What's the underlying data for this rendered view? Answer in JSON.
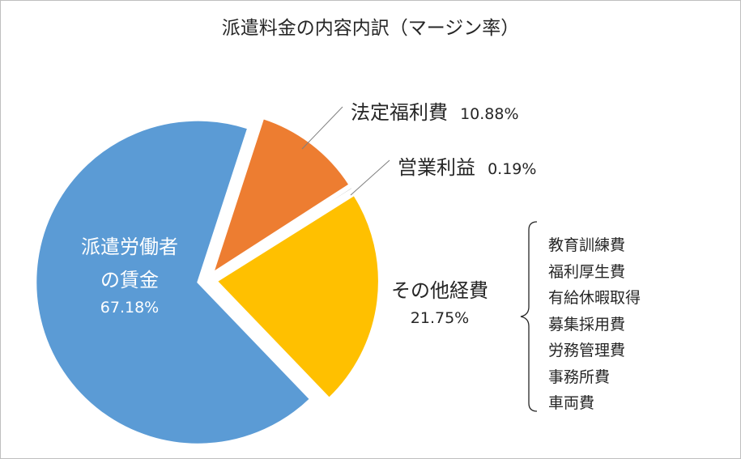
{
  "chart_data": {
    "type": "pie",
    "title": "派遣料金の内容内訳（マージン率）",
    "slices": [
      {
        "name": "派遣労働者の賃金",
        "name_lines": [
          "派遣労働者",
          "の賃金"
        ],
        "value": 67.18,
        "label": "67.18%",
        "color": "#5b9bd5"
      },
      {
        "name": "法定福利費",
        "value": 10.88,
        "label": "10.88%",
        "color": "#ed7d31"
      },
      {
        "name": "営業利益",
        "value": 0.19,
        "label": "0.19%",
        "color": "#a5a5a5"
      },
      {
        "name": "その他経費",
        "value": 21.75,
        "label": "21.75%",
        "color": "#ffc000"
      }
    ],
    "other_costs_breakdown": [
      "教育訓練費",
      "福利厚生費",
      "有給休暇取得",
      "募集採用費",
      "労務管理費",
      "事務所費",
      "車両費"
    ]
  }
}
